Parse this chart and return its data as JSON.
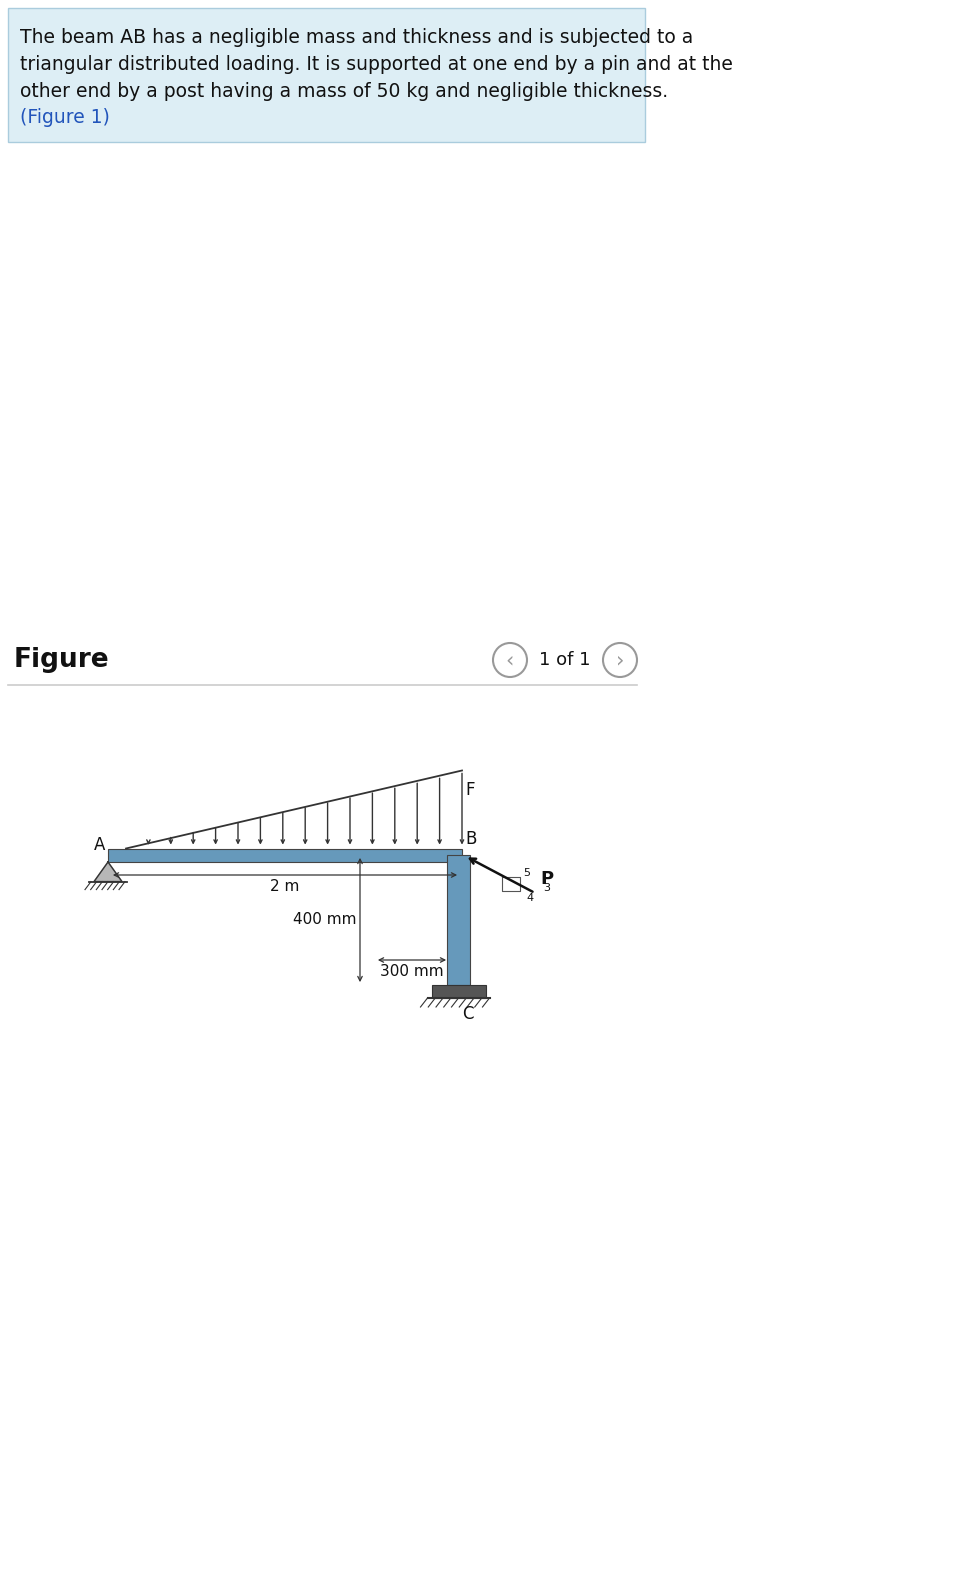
{
  "text_box_color": "#ddeef5",
  "text_box_border": "#aaccdd",
  "description_line1": "The beam AB has a negligible mass and thickness and is subjected to a",
  "description_line2": "triangular distributed loading. It is supported at one end by a pin and at the",
  "description_line3": "other end by a post having a mass of 50 kg and negligible thickness.",
  "description_fig": "(Figure 1)",
  "figure_label": "Figure",
  "nav_text": "1 of 1",
  "beam_color": "#6699bb",
  "post_color": "#6699bb",
  "bg_color": "#ffffff",
  "dim_2m": "2 m",
  "dim_400mm": "400 mm",
  "dim_300mm": "300 mm",
  "label_A": "A",
  "label_B": "B",
  "label_C": "C",
  "label_F": "F",
  "label_P": "P",
  "text_color": "#111111",
  "blue_link_color": "#2255bb",
  "nav_circle_color": "#999999",
  "separator_color": "#cccccc",
  "arrow_color": "#222222",
  "hatch_color": "#333333"
}
